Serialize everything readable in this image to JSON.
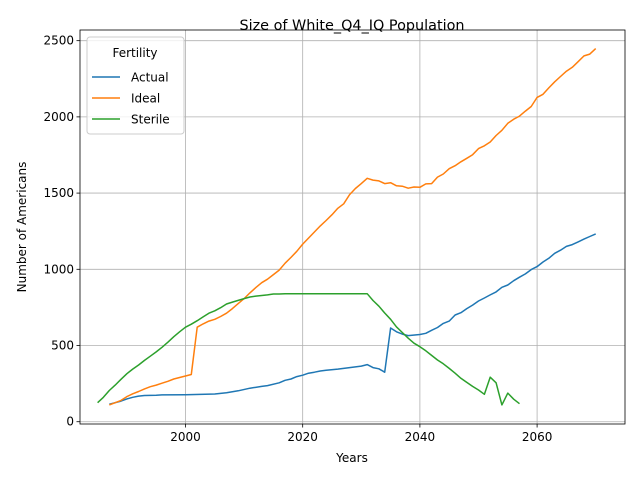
{
  "chart_data": {
    "type": "line",
    "title": "Size of White_Q4_IQ Population",
    "xlabel": "Years",
    "ylabel": "Number of Americans",
    "xlim": [
      2082,
      2075
    ],
    "xlim_note": "",
    "x_range": [
      1982,
      2075
    ],
    "y_range": [
      -15,
      2570
    ],
    "x_ticks": [
      2000,
      2020,
      2040,
      2060
    ],
    "y_ticks": [
      0,
      500,
      1000,
      1500,
      2000,
      2500
    ],
    "grid": true,
    "legend_title": "Fertility",
    "legend_position": "upper-left",
    "series": [
      {
        "name": "Actual",
        "color": "#1f77b4",
        "points": [
          [
            1987,
            115
          ],
          [
            1988,
            125
          ],
          [
            1989,
            135
          ],
          [
            1990,
            150
          ],
          [
            1991,
            160
          ],
          [
            1992,
            168
          ],
          [
            1993,
            172
          ],
          [
            1995,
            174
          ],
          [
            1996,
            176
          ],
          [
            2000,
            177
          ],
          [
            2005,
            182
          ],
          [
            2007,
            190
          ],
          [
            2009,
            203
          ],
          [
            2011,
            220
          ],
          [
            2013,
            232
          ],
          [
            2014,
            237
          ],
          [
            2016,
            255
          ],
          [
            2017,
            272
          ],
          [
            2018,
            280
          ],
          [
            2019,
            296
          ],
          [
            2020,
            305
          ],
          [
            2021,
            318
          ],
          [
            2022,
            325
          ],
          [
            2023,
            333
          ],
          [
            2024,
            337
          ],
          [
            2026,
            345
          ],
          [
            2028,
            355
          ],
          [
            2030,
            365
          ],
          [
            2031,
            375
          ],
          [
            2032,
            355
          ],
          [
            2033,
            347
          ],
          [
            2034,
            325
          ],
          [
            2035,
            615
          ],
          [
            2036,
            590
          ],
          [
            2037,
            575
          ],
          [
            2038,
            565
          ],
          [
            2040,
            572
          ],
          [
            2041,
            580
          ],
          [
            2042,
            600
          ],
          [
            2043,
            618
          ],
          [
            2044,
            645
          ],
          [
            2045,
            660
          ],
          [
            2046,
            700
          ],
          [
            2047,
            715
          ],
          [
            2048,
            742
          ],
          [
            2049,
            765
          ],
          [
            2050,
            792
          ],
          [
            2051,
            812
          ],
          [
            2052,
            832
          ],
          [
            2053,
            852
          ],
          [
            2054,
            882
          ],
          [
            2055,
            897
          ],
          [
            2056,
            925
          ],
          [
            2057,
            948
          ],
          [
            2058,
            970
          ],
          [
            2059,
            998
          ],
          [
            2060,
            1018
          ],
          [
            2061,
            1048
          ],
          [
            2062,
            1072
          ],
          [
            2063,
            1105
          ],
          [
            2064,
            1125
          ],
          [
            2065,
            1150
          ],
          [
            2066,
            1162
          ],
          [
            2067,
            1180
          ],
          [
            2068,
            1198
          ],
          [
            2069,
            1215
          ],
          [
            2070,
            1232
          ]
        ]
      },
      {
        "name": "Ideal",
        "color": "#ff7f0e",
        "points": [
          [
            1987,
            110
          ],
          [
            1988,
            125
          ],
          [
            1989,
            140
          ],
          [
            1990,
            165
          ],
          [
            1991,
            183
          ],
          [
            1992,
            198
          ],
          [
            1993,
            215
          ],
          [
            1994,
            230
          ],
          [
            1995,
            240
          ],
          [
            1996,
            253
          ],
          [
            1997,
            265
          ],
          [
            1998,
            280
          ],
          [
            1999,
            290
          ],
          [
            2000,
            300
          ],
          [
            2001,
            310
          ],
          [
            2002,
            620
          ],
          [
            2003,
            642
          ],
          [
            2004,
            660
          ],
          [
            2005,
            672
          ],
          [
            2006,
            690
          ],
          [
            2007,
            712
          ],
          [
            2008,
            742
          ],
          [
            2009,
            775
          ],
          [
            2010,
            808
          ],
          [
            2011,
            845
          ],
          [
            2012,
            880
          ],
          [
            2013,
            912
          ],
          [
            2014,
            935
          ],
          [
            2015,
            965
          ],
          [
            2016,
            995
          ],
          [
            2017,
            1040
          ],
          [
            2018,
            1078
          ],
          [
            2019,
            1118
          ],
          [
            2020,
            1165
          ],
          [
            2021,
            1205
          ],
          [
            2022,
            1245
          ],
          [
            2023,
            1285
          ],
          [
            2024,
            1320
          ],
          [
            2025,
            1358
          ],
          [
            2026,
            1400
          ],
          [
            2027,
            1430
          ],
          [
            2028,
            1490
          ],
          [
            2029,
            1530
          ],
          [
            2030,
            1562
          ],
          [
            2031,
            1597
          ],
          [
            2032,
            1585
          ],
          [
            2033,
            1580
          ],
          [
            2034,
            1562
          ],
          [
            2035,
            1568
          ],
          [
            2036,
            1548
          ],
          [
            2037,
            1545
          ],
          [
            2038,
            1532
          ],
          [
            2039,
            1540
          ],
          [
            2040,
            1538
          ],
          [
            2041,
            1560
          ],
          [
            2042,
            1562
          ],
          [
            2043,
            1605
          ],
          [
            2044,
            1625
          ],
          [
            2045,
            1660
          ],
          [
            2046,
            1680
          ],
          [
            2047,
            1705
          ],
          [
            2048,
            1728
          ],
          [
            2049,
            1752
          ],
          [
            2050,
            1792
          ],
          [
            2051,
            1810
          ],
          [
            2052,
            1835
          ],
          [
            2053,
            1878
          ],
          [
            2054,
            1912
          ],
          [
            2055,
            1958
          ],
          [
            2056,
            1985
          ],
          [
            2057,
            2005
          ],
          [
            2058,
            2038
          ],
          [
            2059,
            2068
          ],
          [
            2060,
            2128
          ],
          [
            2061,
            2148
          ],
          [
            2062,
            2190
          ],
          [
            2063,
            2230
          ],
          [
            2064,
            2265
          ],
          [
            2065,
            2300
          ],
          [
            2066,
            2325
          ],
          [
            2067,
            2362
          ],
          [
            2068,
            2400
          ],
          [
            2069,
            2412
          ],
          [
            2070,
            2448
          ]
        ]
      },
      {
        "name": "Sterile",
        "color": "#2ca02c",
        "points": [
          [
            1985,
            125
          ],
          [
            1986,
            160
          ],
          [
            1987,
            205
          ],
          [
            1988,
            240
          ],
          [
            1989,
            278
          ],
          [
            1990,
            315
          ],
          [
            1991,
            345
          ],
          [
            1992,
            372
          ],
          [
            1993,
            402
          ],
          [
            1994,
            430
          ],
          [
            1995,
            458
          ],
          [
            1996,
            488
          ],
          [
            1997,
            522
          ],
          [
            1998,
            558
          ],
          [
            1999,
            590
          ],
          [
            2000,
            620
          ],
          [
            2001,
            640
          ],
          [
            2002,
            663
          ],
          [
            2003,
            688
          ],
          [
            2004,
            712
          ],
          [
            2005,
            728
          ],
          [
            2006,
            748
          ],
          [
            2007,
            772
          ],
          [
            2008,
            785
          ],
          [
            2009,
            796
          ],
          [
            2010,
            808
          ],
          [
            2011,
            818
          ],
          [
            2012,
            824
          ],
          [
            2013,
            828
          ],
          [
            2014,
            832
          ],
          [
            2015,
            838
          ],
          [
            2016,
            838
          ],
          [
            2017,
            840
          ],
          [
            2020,
            840
          ],
          [
            2031,
            840
          ],
          [
            2032,
            795
          ],
          [
            2033,
            758
          ],
          [
            2034,
            713
          ],
          [
            2035,
            672
          ],
          [
            2036,
            622
          ],
          [
            2037,
            585
          ],
          [
            2038,
            548
          ],
          [
            2039,
            515
          ],
          [
            2040,
            492
          ],
          [
            2041,
            465
          ],
          [
            2042,
            435
          ],
          [
            2043,
            405
          ],
          [
            2044,
            380
          ],
          [
            2045,
            350
          ],
          [
            2046,
            318
          ],
          [
            2047,
            285
          ],
          [
            2048,
            258
          ],
          [
            2049,
            232
          ],
          [
            2050,
            208
          ],
          [
            2051,
            180
          ],
          [
            2052,
            292
          ],
          [
            2053,
            255
          ],
          [
            2054,
            110
          ],
          [
            2055,
            188
          ],
          [
            2056,
            148
          ],
          [
            2057,
            118
          ]
        ]
      }
    ]
  }
}
